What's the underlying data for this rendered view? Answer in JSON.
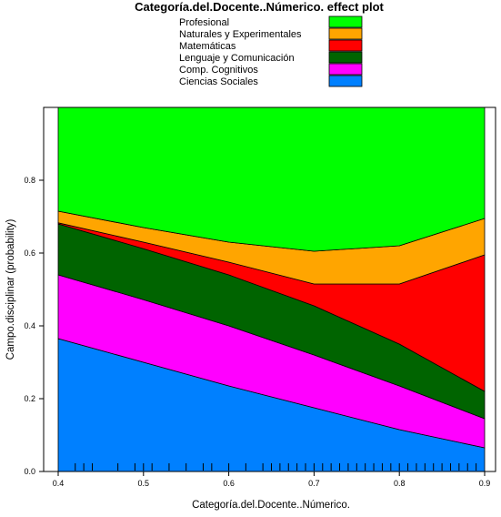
{
  "chart_data": {
    "type": "area",
    "stacked": true,
    "title": "Categoría.del.Docente..Númerico. effect plot",
    "xlabel": "Categoría.del.Docente..Númerico.",
    "ylabel": "Campo.disciplinar (probability)",
    "xlim": [
      0.4,
      0.9
    ],
    "ylim": [
      0,
      1
    ],
    "x": [
      0.4,
      0.5,
      0.6,
      0.7,
      0.8,
      0.9
    ],
    "x_ticks": [
      "0.4",
      "0.5",
      "0.6",
      "0.7",
      "0.8",
      "0.9"
    ],
    "y_ticks": [
      "0.0",
      "0.2",
      "0.4",
      "0.6",
      "0.8"
    ],
    "y_tick_values": [
      0,
      0.2,
      0.4,
      0.6,
      0.8
    ],
    "legend_position": "top",
    "series": [
      {
        "name": "Ciencias Sociales",
        "color": "#0080ff",
        "values": [
          0.365,
          0.3,
          0.235,
          0.175,
          0.115,
          0.065
        ]
      },
      {
        "name": "Comp. Cognitivos",
        "color": "#ff00ff",
        "values": [
          0.175,
          0.172,
          0.165,
          0.145,
          0.12,
          0.08
        ]
      },
      {
        "name": "Lenguaje y Comunicación",
        "color": "#006400",
        "values": [
          0.14,
          0.14,
          0.14,
          0.135,
          0.115,
          0.075
        ]
      },
      {
        "name": "Matemáticas",
        "color": "#ff0000",
        "values": [
          0.003,
          0.018,
          0.035,
          0.06,
          0.165,
          0.375
        ]
      },
      {
        "name": "Naturales y Experimentales",
        "color": "#ffa500",
        "values": [
          0.032,
          0.04,
          0.055,
          0.09,
          0.105,
          0.1
        ]
      },
      {
        "name": "Profesional",
        "color": "#00ff00",
        "values": [
          0.285,
          0.33,
          0.37,
          0.395,
          0.38,
          0.305
        ]
      }
    ],
    "legend_order": [
      "Profesional",
      "Naturales y Experimentales",
      "Matemáticas",
      "Lenguaje y Comunicación",
      "Comp. Cognitivos",
      "Ciencias Sociales"
    ],
    "rug": [
      0.42,
      0.43,
      0.44,
      0.47,
      0.49,
      0.5,
      0.51,
      0.53,
      0.55,
      0.57,
      0.58,
      0.6,
      0.62,
      0.64,
      0.65,
      0.66,
      0.67,
      0.68,
      0.69,
      0.7,
      0.71,
      0.72,
      0.73,
      0.74,
      0.75,
      0.76,
      0.77,
      0.78,
      0.79,
      0.8,
      0.81,
      0.82,
      0.83,
      0.84,
      0.85,
      0.86,
      0.87,
      0.88,
      0.89
    ]
  }
}
